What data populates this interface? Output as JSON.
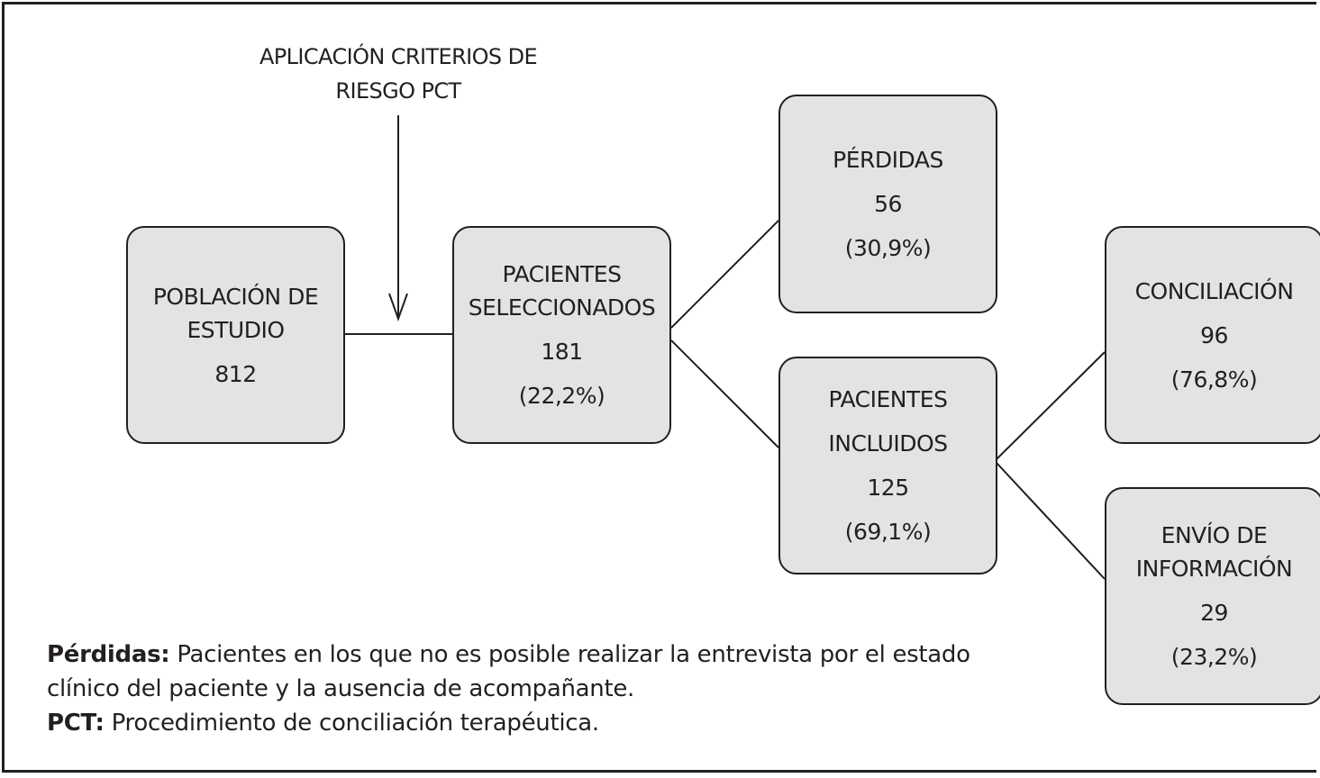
{
  "criteria_label": [
    "APLICACIÓN CRITERIOS DE",
    "RIESGO PCT"
  ],
  "nodes": {
    "poblacion": {
      "title": [
        "POBLACIÓN DE",
        "ESTUDIO"
      ],
      "count": "812"
    },
    "seleccionados": {
      "title": [
        "PACIENTES",
        "SELECCIONADOS"
      ],
      "count": "181",
      "percent": "(22,2%)"
    },
    "perdidas": {
      "title": [
        "PÉRDIDAS"
      ],
      "count": "56",
      "percent": "(30,9%)"
    },
    "incluidos": {
      "title": [
        "PACIENTES",
        "INCLUIDOS"
      ],
      "count": "125",
      "percent": "(69,1%)"
    },
    "conciliacion": {
      "title": [
        "CONCILIACIÓN"
      ],
      "count": "96",
      "percent": "(76,8%)"
    },
    "envio": {
      "title": [
        "ENVÍO DE",
        "INFORMACIÓN"
      ],
      "count": "29",
      "percent": "(23,2%)"
    }
  },
  "notes": [
    {
      "term": "Pérdidas:",
      "text": " Pacientes en los que no es posible realizar la entrevista por el estado clínico del paciente y la ausencia de acompañante."
    },
    {
      "term": "PCT:",
      "text": " Procedimiento de conciliación terapéutica."
    }
  ],
  "colors": {
    "box_fill": "#e3e3e3",
    "stroke": "#231f20"
  }
}
